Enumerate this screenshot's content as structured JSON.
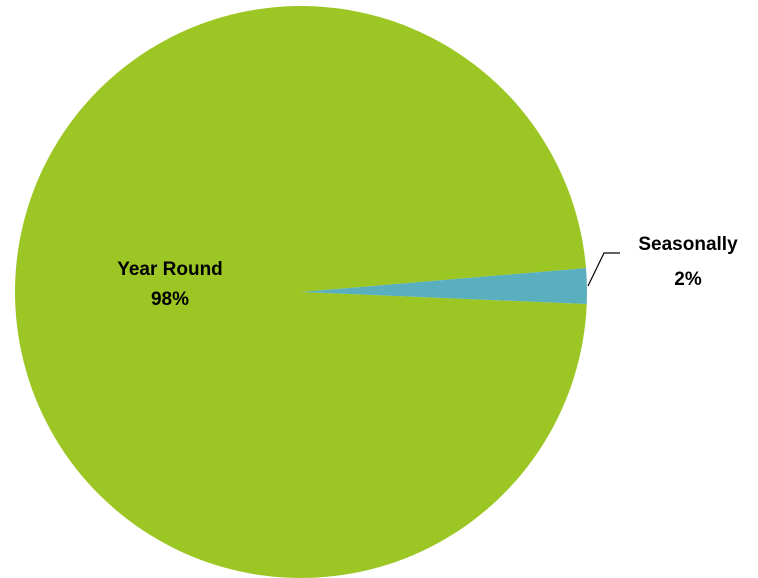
{
  "chart_data": {
    "type": "pie",
    "title": "",
    "legend": "none",
    "slices": [
      {
        "label": "Year Round",
        "value": 98,
        "percent_label": "98%",
        "color": "#9BC623"
      },
      {
        "label": "Seasonally",
        "value": 2,
        "percent_label": "2%",
        "color": "#5AAFBF"
      }
    ]
  }
}
